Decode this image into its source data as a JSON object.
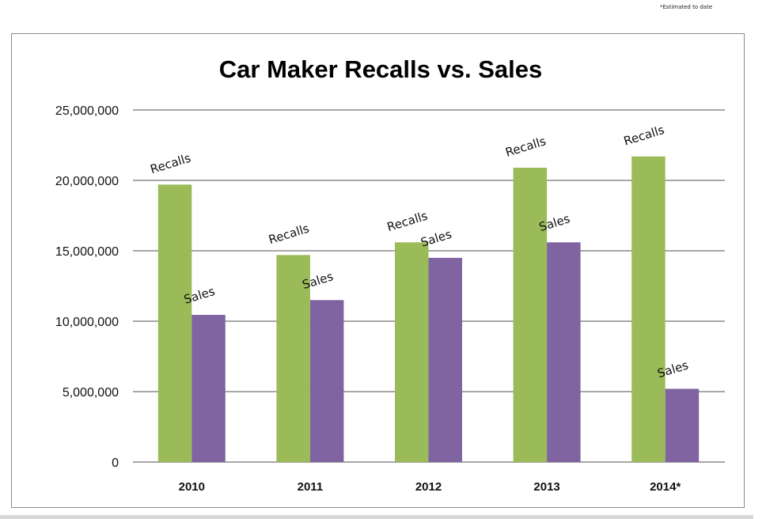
{
  "note": "*Estimated to date",
  "chart_data": {
    "type": "bar",
    "title": "Car Maker Recalls vs. Sales",
    "categories": [
      "2010",
      "2011",
      "2012",
      "2013",
      "2014*"
    ],
    "series": [
      {
        "name": "Recalls",
        "color": "#9BBB59",
        "values": [
          19700000,
          14700000,
          15600000,
          20900000,
          21700000
        ]
      },
      {
        "name": "Sales",
        "color": "#8064A2",
        "values": [
          10450000,
          11500000,
          14500000,
          15600000,
          5200000
        ]
      }
    ],
    "ylim": [
      0,
      25000000
    ],
    "yticks": [
      "0",
      "5,000,000",
      "10,000,000",
      "15,000,000",
      "20,000,000",
      "25,000,000"
    ],
    "grid": true,
    "legend": "none; series names drawn as rotated data labels above each bar"
  }
}
